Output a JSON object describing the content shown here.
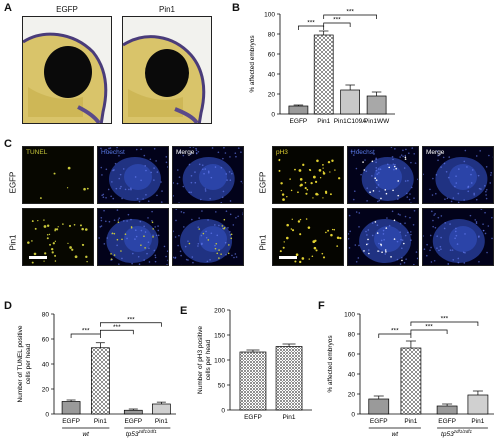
{
  "panels": {
    "A": {
      "label": "A",
      "titles": [
        "EGFP",
        "Pin1"
      ]
    },
    "B": {
      "label": "B"
    },
    "C": {
      "label": "C",
      "left_headers": [
        "TUNEL",
        "Hoechst",
        "Merge"
      ],
      "right_headers": [
        "pH3",
        "Hoechst",
        "Merge"
      ],
      "row_labels": [
        "EGFP",
        "Pin1"
      ]
    },
    "D": {
      "label": "D"
    },
    "E": {
      "label": "E"
    },
    "F": {
      "label": "F"
    }
  },
  "colors": {
    "tunel": "#c8c83a",
    "hoechst": "#3a5bd8",
    "ph3": "#e0d030"
  },
  "chart_data": [
    {
      "panel": "B",
      "type": "bar",
      "categories": [
        "EGFP",
        "Pin1",
        "Pin1C109A",
        "Pin1WW"
      ],
      "values": [
        8,
        79,
        24,
        18
      ],
      "errors": [
        1,
        4,
        5,
        4
      ],
      "ylabel": "% affected embryos",
      "ylim": [
        0,
        100
      ],
      "yticks": [
        "0",
        "20",
        "40",
        "60",
        "80",
        "100"
      ],
      "significance": [
        "***",
        "***",
        "***"
      ]
    },
    {
      "panel": "D",
      "type": "bar",
      "categories": [
        "EGFP",
        "Pin1",
        "EGFP",
        "Pin1"
      ],
      "values": [
        10,
        53,
        3,
        8
      ],
      "errors": [
        1.2,
        4,
        1,
        1.5
      ],
      "ylabel": "Number of TUNEL positive cells per head",
      "ylim": [
        0,
        80
      ],
      "yticks": [
        "0",
        "20",
        "40",
        "60",
        "80"
      ],
      "groups": [
        "wt",
        "tp53"
      ],
      "group_superscript": "zdf1/zdf1",
      "significance": [
        "***",
        "***",
        "***"
      ]
    },
    {
      "panel": "E",
      "type": "bar",
      "categories": [
        "EGFP",
        "Pin1"
      ],
      "values": [
        116,
        127
      ],
      "errors": [
        4,
        5
      ],
      "ylabel": "Number of pH3 positive cells per head",
      "ylim": [
        0,
        200
      ],
      "yticks": [
        "0",
        "50",
        "100",
        "150",
        "200"
      ]
    },
    {
      "panel": "F",
      "type": "bar",
      "categories": [
        "EGFP",
        "Pin1",
        "EGFP",
        "Pin1"
      ],
      "values": [
        15,
        66,
        8,
        19
      ],
      "errors": [
        3,
        7,
        2,
        4
      ],
      "ylabel": "% affected embryos",
      "ylim": [
        0,
        100
      ],
      "yticks": [
        "0",
        "20",
        "40",
        "60",
        "80",
        "100"
      ],
      "groups": [
        "wt",
        "tp53"
      ],
      "group_superscript": "zdf1/zdf1",
      "significance": [
        "***",
        "***",
        "***"
      ]
    }
  ]
}
